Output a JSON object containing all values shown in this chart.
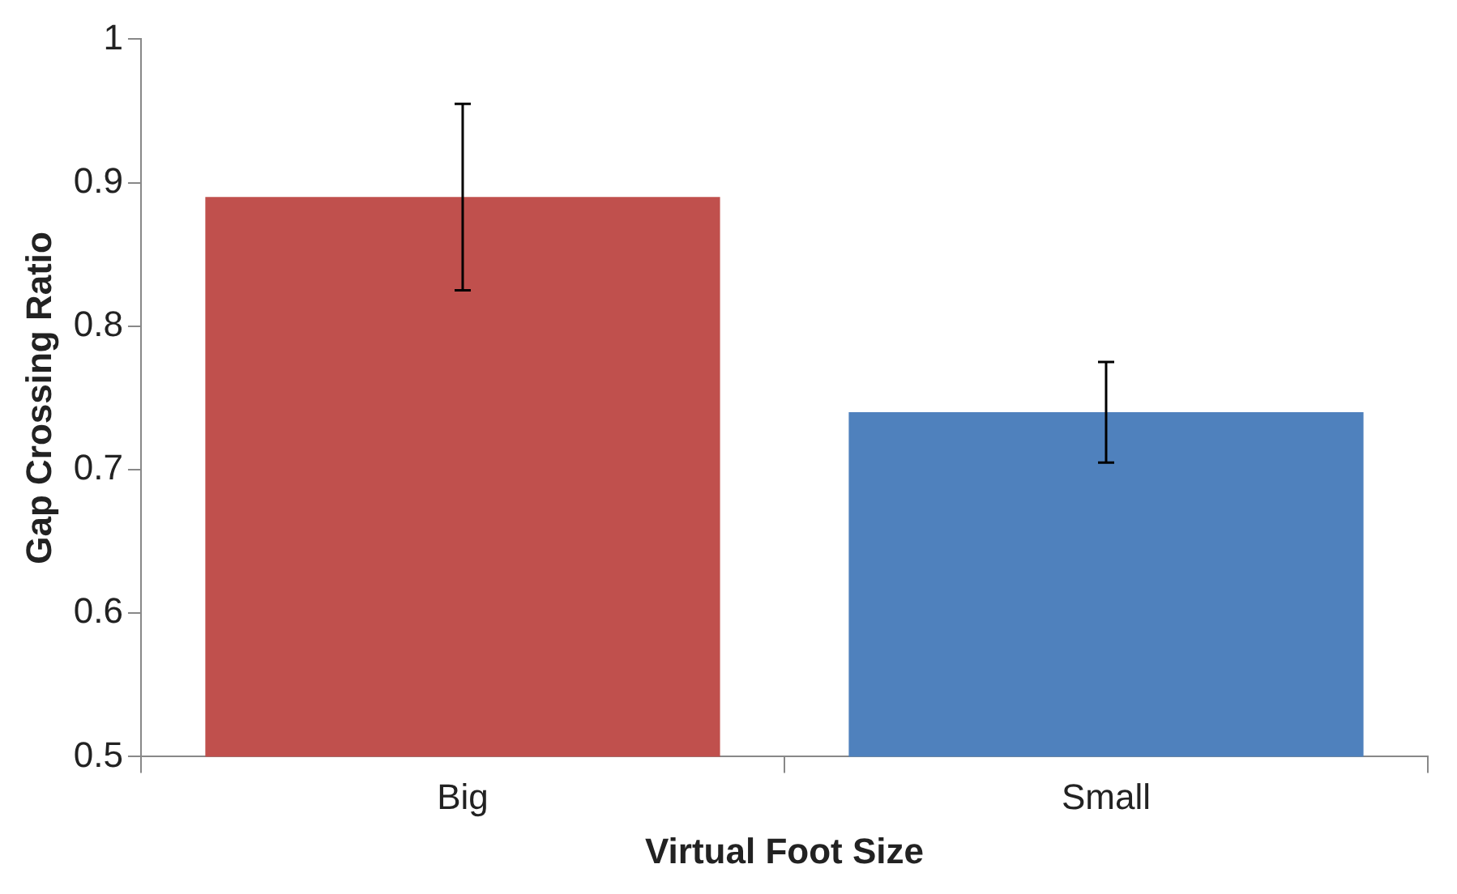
{
  "chart_data": {
    "type": "bar",
    "xlabel": "Virtual Foot Size",
    "ylabel": "Gap Crossing Ratio",
    "categories": [
      "Big",
      "Small"
    ],
    "values": [
      0.89,
      0.74
    ],
    "colors": [
      "#c0504d",
      "#4f81bd"
    ],
    "errors": [
      0.065,
      0.035
    ],
    "ylim": [
      0.5,
      1
    ],
    "yticks": [
      0.5,
      0.6,
      0.7,
      0.8,
      0.9,
      1
    ],
    "grid": false,
    "legend": false
  }
}
